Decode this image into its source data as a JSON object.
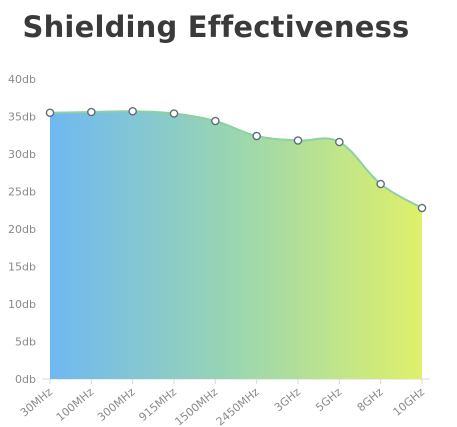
{
  "chart_data": {
    "type": "area",
    "title": "Shielding Effectiveness",
    "xlabel": "",
    "ylabel": "",
    "categories": [
      "30MHz",
      "100MHz",
      "300MHz",
      "915MHz",
      "1500MHz",
      "2450MHz",
      "3GHz",
      "5GHz",
      "8GHz",
      "10GHz"
    ],
    "series": [
      {
        "values": [
          35.5,
          35.6,
          35.7,
          35.4,
          34.4,
          32.4,
          31.8,
          31.6,
          26.0,
          22.8
        ]
      }
    ],
    "ylim": [
      0,
      40
    ],
    "yticks": [
      0,
      5,
      10,
      15,
      20,
      25,
      30,
      35,
      40
    ],
    "ytick_labels": [
      "0db",
      "5db",
      "10db",
      "15db",
      "20db",
      "25db",
      "30db",
      "35db",
      "40db"
    ],
    "grid": false,
    "legend": "none",
    "colors": {
      "gradient_start": "#6fb8f2",
      "gradient_mid": "#9ad6b0",
      "gradient_end": "#dff06a",
      "line": "#8fcfa4",
      "marker_stroke": "#5e6e7a",
      "marker_fill": "#ffffff"
    }
  }
}
